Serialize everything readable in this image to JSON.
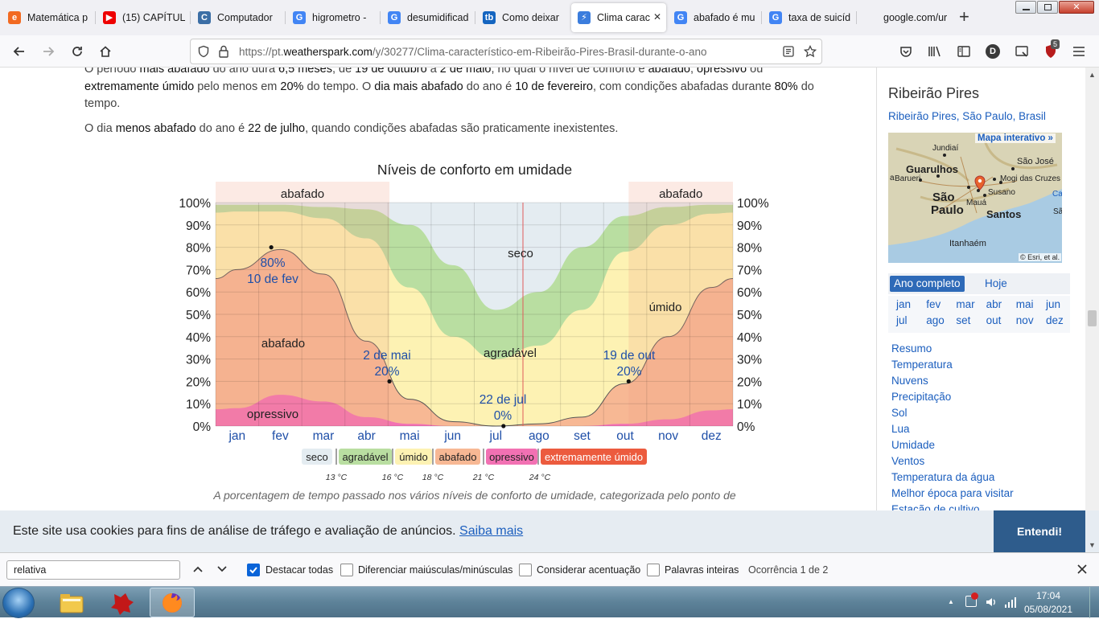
{
  "tabs": [
    {
      "label": "Matemática p",
      "icon": "e",
      "color": "#f26a21"
    },
    {
      "label": "(15) CAPÍTUL",
      "icon": "▶",
      "color": "#e00"
    },
    {
      "label": "Computador",
      "icon": "C",
      "color": "#3b6ea5"
    },
    {
      "label": "higrometro -",
      "icon": "G",
      "color": "#4285f4"
    },
    {
      "label": "desumidificad",
      "icon": "G",
      "color": "#4285f4"
    },
    {
      "label": "Como deixar",
      "icon": "tb",
      "color": "#1565c0"
    },
    {
      "label": "Clima carac",
      "icon": "⚡",
      "color": "#3b7ddd"
    },
    {
      "label": "abafado é mu",
      "icon": "G",
      "color": "#4285f4"
    },
    {
      "label": "taxa de suicíd",
      "icon": "G",
      "color": "#4285f4"
    },
    {
      "label": "google.com/url?sa",
      "icon": "",
      "color": "#f0f0f4"
    }
  ],
  "close_tab_glyph": "✕",
  "new_tab_glyph": "+",
  "url": {
    "prefix": "https://pt.",
    "domain": "weatherspark.com",
    "path": "/y/30277/Clima-característico-em-Ribeirão-Pires-Brasil-durante-o-ano"
  },
  "profile_letter": "D",
  "badge_count": "5",
  "content": {
    "p1_a": "O período ",
    "p1_b": "mais abafado",
    "p1_c": " do ano dura ",
    "p1_d": "6,5 meses",
    "p1_e": ", de ",
    "p1_f": "19 de outubro",
    "p1_g": " a ",
    "p1_h": "2 de maio",
    "p1_i": ", no qual o nível de conforto é ",
    "p1_j": "abafado",
    "p1_k": ", ",
    "p1_l": "opressivo",
    "p1_m": " ou",
    "p2_a": "extremamente úmido",
    "p2_b": " pelo menos em ",
    "p2_c": "20%",
    "p2_d": " do tempo. O ",
    "p2_e": "dia mais abafado",
    "p2_f": " do ano é ",
    "p2_g": "10 de fevereiro",
    "p2_h": ", com condições abafadas durante ",
    "p2_i": "80%",
    "p2_j": " do",
    "p3": "tempo.",
    "p4_a": "O dia ",
    "p4_b": "menos abafado",
    "p4_c": " do ano é ",
    "p4_d": "22 de julho",
    "p4_e": ", quando condições abafadas são praticamente inexistentes.",
    "caption": "A porcentagem de tempo passado nos vários níveis de conforto de umidade, categorizada pelo ponto de"
  },
  "chart_data": {
    "type": "area",
    "title": "Níveis de conforto em umidade",
    "x": [
      "jan",
      "fev",
      "mar",
      "abr",
      "mai",
      "jun",
      "jul",
      "ago",
      "set",
      "out",
      "nov",
      "dez"
    ],
    "ylim": [
      0,
      100
    ],
    "yticks": [
      "0%",
      "10%",
      "20%",
      "30%",
      "40%",
      "50%",
      "60%",
      "70%",
      "80%",
      "90%",
      "100%"
    ],
    "band_labels": {
      "seco": "seco",
      "agradavel": "agradável",
      "umido": "úmido",
      "abafado": "abafado",
      "opressivo": "opressivo",
      "top_left": "abafado",
      "top_right": "abafado"
    },
    "series_monthly_cumulative_pct": {
      "opressivo": [
        8,
        14,
        11,
        4,
        1,
        0,
        0,
        0,
        0,
        1,
        3,
        7
      ],
      "abafado": [
        70,
        79,
        68,
        38,
        12,
        2,
        0,
        1,
        4,
        19,
        40,
        62
      ],
      "umido": [
        96,
        96,
        93,
        84,
        62,
        40,
        30,
        36,
        52,
        78,
        90,
        95
      ],
      "agradavel": [
        99,
        99,
        98,
        97,
        90,
        72,
        52,
        60,
        80,
        94,
        98,
        99
      ]
    },
    "annotations": [
      {
        "text1": "80%",
        "text2": "10 de fev",
        "date": "fev 10",
        "value": 80
      },
      {
        "text1": "2 de mai",
        "text2": "20%",
        "date": "mai 2",
        "value": 20
      },
      {
        "text1": "22 de jul",
        "text2": "0%",
        "date": "jul 22",
        "value": 0
      },
      {
        "text1": "19 de out",
        "text2": "20%",
        "date": "out 19",
        "value": 20
      }
    ],
    "legend": [
      {
        "label": "seco",
        "color": "#e4ecf1",
        "text": "#222"
      },
      {
        "label": "agradável",
        "color": "#b9dea1",
        "text": "#222"
      },
      {
        "label": "úmido",
        "color": "#fdf2b3",
        "text": "#222"
      },
      {
        "label": "abafado",
        "color": "#f7b894",
        "text": "#222"
      },
      {
        "label": "opressivo",
        "color": "#f271b3",
        "text": "#222"
      },
      {
        "label": "extremamente úmido",
        "color": "#ec5b3e",
        "text": "#fff"
      }
    ],
    "thresholds": [
      "13 °C",
      "16 °C",
      "18 °C",
      "21 °C",
      "24 °C"
    ]
  },
  "sidebar": {
    "title": "Ribeirão Pires",
    "location": "Ribeirão Pires, São Paulo, Brasil",
    "map_link": "Mapa interativo »",
    "map_credit": "© Esri, et al.",
    "map_places": [
      "Jundiaí",
      "Guarulhos",
      "São José",
      "Barueri",
      "Mogi das Cruzes",
      "São",
      "Paulo",
      "Susano",
      "Mauá",
      "Santos",
      "Itanhaém",
      "Ca",
      "Sã",
      "a"
    ],
    "period_tabs": [
      "Ano completo",
      "Hoje"
    ],
    "months_row1": [
      "jan",
      "fev",
      "mar",
      "abr",
      "mai",
      "jun"
    ],
    "months_row2": [
      "jul",
      "ago",
      "set",
      "out",
      "nov",
      "dez"
    ],
    "links": [
      "Resumo",
      "Temperatura",
      "Nuvens",
      "Precipitação",
      "Sol",
      "Lua",
      "Umidade",
      "Ventos",
      "Temperatura da água",
      "Melhor época para visitar",
      "Estação de cultivo"
    ]
  },
  "cookie": {
    "text": "Este site usa cookies para fins de análise de tráfego e avaliação de anúncios.",
    "link": "Saiba mais",
    "button": "Entendi!"
  },
  "findbar": {
    "query": "relativa",
    "options": [
      {
        "label": "Destacar todas",
        "checked": true
      },
      {
        "label": "Diferenciar maiúsculas/minúsculas",
        "checked": false
      },
      {
        "label": "Considerar acentuação",
        "checked": false
      },
      {
        "label": "Palavras inteiras",
        "checked": false
      }
    ],
    "status": "Ocorrência 1 de 2"
  },
  "taskbar": {
    "time": "17:04",
    "date": "05/08/2021"
  }
}
